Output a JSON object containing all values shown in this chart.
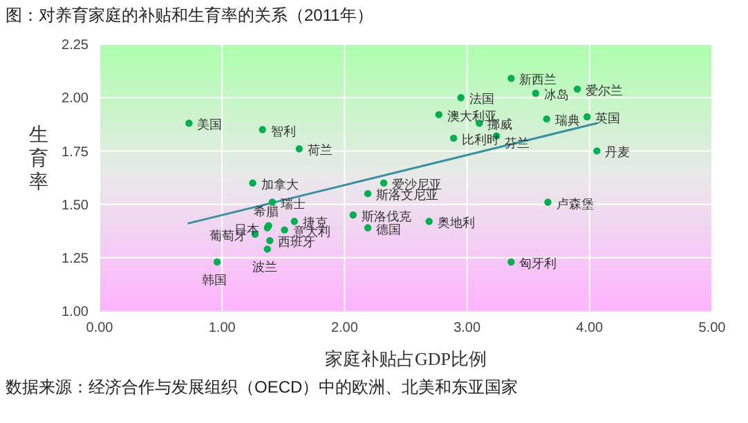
{
  "chart_data": {
    "type": "scatter",
    "title": "图：对养育家庭的补贴和生育率的关系（2011年）",
    "xlabel": "家庭补贴占GDP比例",
    "ylabel": "生育率",
    "annotations": [
      "数据来源：经济合作与发展组织（OECD）中的欧洲、北美和东亚国家"
    ],
    "xlim": [
      0,
      5
    ],
    "xticks": [
      {
        "value": 0,
        "label": "0.00"
      },
      {
        "value": 1,
        "label": "1.00"
      },
      {
        "value": 2,
        "label": "2.00"
      },
      {
        "value": 3,
        "label": "3.00"
      },
      {
        "value": 4,
        "label": "4.00"
      },
      {
        "value": 5,
        "label": "5.00"
      }
    ],
    "ylim": [
      1,
      2.25
    ],
    "yticks": [
      {
        "value": 1,
        "label": "1.00"
      },
      {
        "value": 1.25,
        "label": "1.25"
      },
      {
        "value": 1.5,
        "label": "1.50"
      },
      {
        "value": 1.75,
        "label": "1.75"
      },
      {
        "value": 2,
        "label": "2.00"
      },
      {
        "value": 2.25,
        "label": "2.25"
      }
    ],
    "grid": true,
    "series": [
      {
        "marker": "circle",
        "color": "#00b050",
        "x": [
          0.73,
          1.33,
          1.63,
          1.25,
          1.41,
          1.38,
          1.37,
          1.59,
          1.51,
          1.27,
          1.39,
          1.37,
          0.96,
          2.07,
          2.19,
          2.32,
          2.19,
          2.69,
          3.66,
          3.36,
          3.36,
          3.56,
          3.9,
          2.95,
          2.77,
          3.1,
          3.65,
          3.98,
          2.89,
          3.24,
          4.06
        ],
        "values": [
          1.88,
          1.85,
          1.76,
          1.6,
          1.51,
          1.4,
          1.39,
          1.42,
          1.38,
          1.36,
          1.33,
          1.29,
          1.23,
          1.45,
          1.39,
          1.6,
          1.55,
          1.42,
          1.51,
          1.23,
          2.09,
          2.02,
          2.04,
          2.0,
          1.92,
          1.88,
          1.9,
          1.91,
          1.81,
          1.82,
          1.75
        ],
        "value_labels": [
          "美国",
          "智利",
          "荷兰",
          "加拿大",
          "瑞士",
          "希腊",
          "日本",
          "捷克",
          "意大利",
          "葡萄牙",
          "西班牙",
          "波兰",
          "韩国",
          "斯洛伐克",
          "德国",
          "爱沙尼亚",
          "斯洛文尼亚",
          "奥地利",
          "卢森堡",
          "匈牙利",
          "新西兰",
          "冰岛",
          "爱尔兰",
          "法国",
          "澳大利亚",
          "挪威",
          "瑞典",
          "英国",
          "比利时",
          "芬兰",
          "丹麦"
        ]
      },
      {
        "type": "line",
        "color": "#3a8fa0",
        "x": [
          0.72,
          4.06
        ],
        "values": [
          1.41,
          1.88
        ]
      }
    ]
  }
}
